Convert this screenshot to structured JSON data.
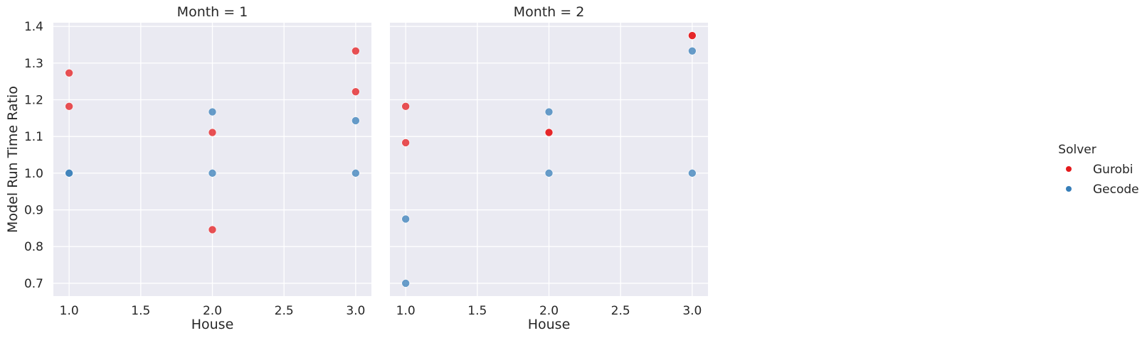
{
  "chart_data": [
    {
      "type": "scatter",
      "title": "Month = 1",
      "xlabel": "House",
      "ylabel": "Model Run Time Ratio",
      "xlim": [
        0.89,
        3.11
      ],
      "ylim": [
        0.665,
        1.41
      ],
      "xticks": [
        "1.0",
        "1.5",
        "2.0",
        "2.5",
        "3.0"
      ],
      "yticks": [
        "0.7",
        "0.8",
        "0.9",
        "1.0",
        "1.1",
        "1.2",
        "1.3",
        "1.4"
      ],
      "grid": true,
      "series": [
        {
          "name": "Gurobi",
          "color": "#e41a1c",
          "points": [
            [
              1.0,
              1.273
            ],
            [
              1.0,
              1.182
            ],
            [
              2.0,
              1.111
            ],
            [
              2.0,
              0.846
            ],
            [
              3.0,
              1.333
            ],
            [
              3.0,
              1.222
            ]
          ]
        },
        {
          "name": "Gecode",
          "color": "#377eb8",
          "points": [
            [
              1.0,
              1.0
            ],
            [
              1.0,
              1.0
            ],
            [
              2.0,
              1.167
            ],
            [
              2.0,
              1.0
            ],
            [
              3.0,
              1.143
            ],
            [
              3.0,
              1.0
            ]
          ]
        }
      ]
    },
    {
      "type": "scatter",
      "title": "Month = 2",
      "xlabel": "House",
      "ylabel": "",
      "xlim": [
        0.89,
        3.11
      ],
      "ylim": [
        0.665,
        1.41
      ],
      "xticks": [
        "1.0",
        "1.5",
        "2.0",
        "2.5",
        "3.0"
      ],
      "yticks": [],
      "grid": true,
      "series": [
        {
          "name": "Gurobi",
          "color": "#e41a1c",
          "points": [
            [
              1.0,
              1.182
            ],
            [
              1.0,
              1.083
            ],
            [
              2.0,
              1.111
            ],
            [
              2.0,
              1.111
            ],
            [
              3.0,
              1.375
            ],
            [
              3.0,
              1.375
            ]
          ]
        },
        {
          "name": "Gecode",
          "color": "#377eb8",
          "points": [
            [
              1.0,
              0.875
            ],
            [
              1.0,
              0.7
            ],
            [
              2.0,
              1.167
            ],
            [
              2.0,
              1.0
            ],
            [
              3.0,
              1.333
            ],
            [
              3.0,
              1.0
            ]
          ]
        }
      ]
    }
  ],
  "legend": {
    "title": "Solver",
    "placement": "right",
    "entries": [
      {
        "label": "Gurobi",
        "color": "#e41a1c"
      },
      {
        "label": "Gecode",
        "color": "#377eb8"
      }
    ]
  },
  "style": {
    "panel_background": "#eaeaf2",
    "grid_color": "#ffffff",
    "text_color": "#262626"
  }
}
